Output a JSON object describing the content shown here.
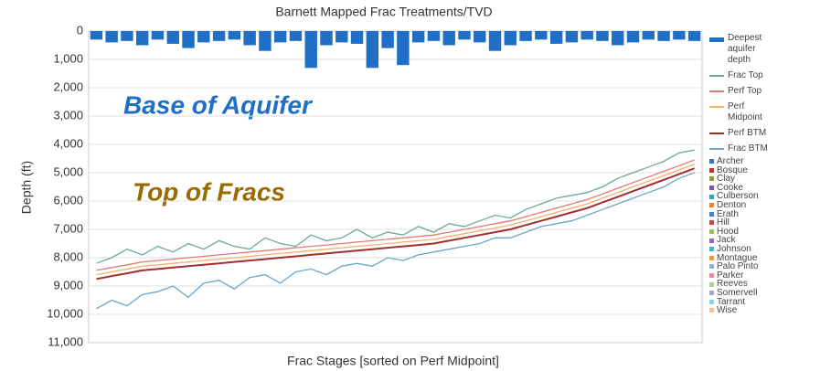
{
  "chart_data": {
    "type": "line",
    "title": "Barnett Mapped Frac Treatments/TVD",
    "x_label": "Frac Stages [sorted on Perf Midpoint]",
    "y_label": "Depth (ft)",
    "inverted_y": true,
    "annotations": [
      {
        "text": "Base of Aquifer",
        "color": "#1f6fc6"
      },
      {
        "text": "Top of Fracs",
        "color": "#9b6a00"
      }
    ],
    "categories": [
      null,
      null,
      null,
      null,
      null,
      null,
      null,
      null,
      null,
      null,
      null,
      null,
      null,
      null,
      null,
      null,
      null,
      null,
      null,
      null,
      null,
      null,
      null,
      null,
      null,
      null,
      null,
      null,
      null,
      null,
      null,
      null,
      null,
      null,
      null,
      null,
      null,
      null,
      null,
      null
    ],
    "ylim": [
      0,
      11000
    ],
    "yticks": [
      0,
      {
        "value": 1000,
        "label": "1,000"
      },
      {
        "value": 2000,
        "label": "2,000"
      },
      {
        "value": 3000,
        "label": "3,000"
      },
      {
        "value": 4000,
        "label": "4,000"
      },
      {
        "value": 5000,
        "label": "5,000"
      },
      {
        "value": 6000,
        "label": "6,000"
      },
      {
        "value": 7000,
        "label": "7,000"
      },
      {
        "value": 8000,
        "label": "8,000"
      },
      {
        "value": 9000,
        "label": "9,000"
      },
      {
        "value": 10000,
        "label": "10,000"
      },
      {
        "value": 11000,
        "label": "11,000"
      }
    ],
    "grid": true,
    "series": [
      {
        "name": "Deepest aquifer depth",
        "color": "#1f6fc6",
        "kind": "bar",
        "values": [
          300,
          400,
          350,
          500,
          300,
          450,
          600,
          400,
          350,
          300,
          500,
          700,
          400,
          350,
          1300,
          500,
          400,
          450,
          1300,
          600,
          1200,
          400,
          350,
          500,
          300,
          400,
          700,
          500,
          350,
          300,
          450,
          400,
          300,
          350,
          500,
          400,
          300,
          350,
          300,
          350
        ]
      },
      {
        "name": "Frac Top",
        "color": "#6fa89a",
        "values": [
          8200,
          8000,
          7700,
          7900,
          7600,
          7800,
          7500,
          7700,
          7400,
          7600,
          7700,
          7300,
          7500,
          7600,
          7200,
          7400,
          7300,
          7000,
          7300,
          7100,
          7200,
          6900,
          7100,
          6800,
          6900,
          6700,
          6500,
          6600,
          6300,
          6100,
          5900,
          5800,
          5700,
          5500,
          5200,
          5000,
          4800,
          4600,
          4300,
          4200
        ]
      },
      {
        "name": "Perf Top",
        "color": "#e07a7a",
        "values": [
          8450,
          8350,
          8250,
          8150,
          8100,
          8050,
          8000,
          7950,
          7900,
          7850,
          7800,
          7750,
          7700,
          7650,
          7600,
          7550,
          7500,
          7450,
          7400,
          7350,
          7300,
          7250,
          7200,
          7100,
          7000,
          6900,
          6800,
          6700,
          6550,
          6400,
          6250,
          6100,
          5950,
          5750,
          5550,
          5350,
          5150,
          4950,
          4750,
          4550
        ]
      },
      {
        "name": "Perf Midpoint",
        "color": "#f5b06a",
        "values": [
          8600,
          8500,
          8400,
          8300,
          8250,
          8200,
          8150,
          8100,
          8050,
          8000,
          7950,
          7900,
          7850,
          7800,
          7750,
          7700,
          7650,
          7600,
          7550,
          7500,
          7450,
          7400,
          7350,
          7250,
          7150,
          7050,
          6950,
          6850,
          6700,
          6550,
          6400,
          6250,
          6100,
          5900,
          5700,
          5500,
          5300,
          5100,
          4900,
          4700
        ]
      },
      {
        "name": "Perf BTM",
        "color": "#a03030",
        "values": [
          8750,
          8650,
          8550,
          8450,
          8400,
          8350,
          8300,
          8250,
          8200,
          8150,
          8100,
          8050,
          8000,
          7950,
          7900,
          7850,
          7800,
          7750,
          7700,
          7650,
          7600,
          7550,
          7500,
          7400,
          7300,
          7200,
          7100,
          7000,
          6850,
          6700,
          6550,
          6400,
          6250,
          6050,
          5850,
          5650,
          5450,
          5250,
          5050,
          4850
        ]
      },
      {
        "name": "Frac BTM",
        "color": "#6aa8c8",
        "values": [
          9800,
          9500,
          9700,
          9300,
          9200,
          9000,
          9400,
          8900,
          8800,
          9100,
          8700,
          8600,
          8900,
          8500,
          8400,
          8600,
          8300,
          8200,
          8300,
          8000,
          8100,
          7900,
          7800,
          7700,
          7600,
          7500,
          7300,
          7300,
          7100,
          6900,
          6800,
          6700,
          6500,
          6300,
          6100,
          5900,
          5700,
          5500,
          5200,
          5000
        ]
      }
    ],
    "county_legend": [
      {
        "name": "Archer",
        "color": "#3a6fb0"
      },
      {
        "name": "Bosque",
        "color": "#b03a3a"
      },
      {
        "name": "Clay",
        "color": "#8aa040"
      },
      {
        "name": "Cooke",
        "color": "#7a5aa8"
      },
      {
        "name": "Culberson",
        "color": "#3aa0b8"
      },
      {
        "name": "Denton",
        "color": "#e08a30"
      },
      {
        "name": "Erath",
        "color": "#4a7ac0"
      },
      {
        "name": "Hill",
        "color": "#c04a4a"
      },
      {
        "name": "Hood",
        "color": "#9ac050"
      },
      {
        "name": "Jack",
        "color": "#8a6ac0"
      },
      {
        "name": "Johnson",
        "color": "#50b0c8"
      },
      {
        "name": "Montague",
        "color": "#f09a40"
      },
      {
        "name": "Palo Pinto",
        "color": "#8ab0e0"
      },
      {
        "name": "Parker",
        "color": "#e09090"
      },
      {
        "name": "Reeves",
        "color": "#b0d090"
      },
      {
        "name": "Somervell",
        "color": "#b0a0d0"
      },
      {
        "name": "Tarrant",
        "color": "#90d0e0"
      },
      {
        "name": "Wise",
        "color": "#f8c090"
      }
    ]
  }
}
